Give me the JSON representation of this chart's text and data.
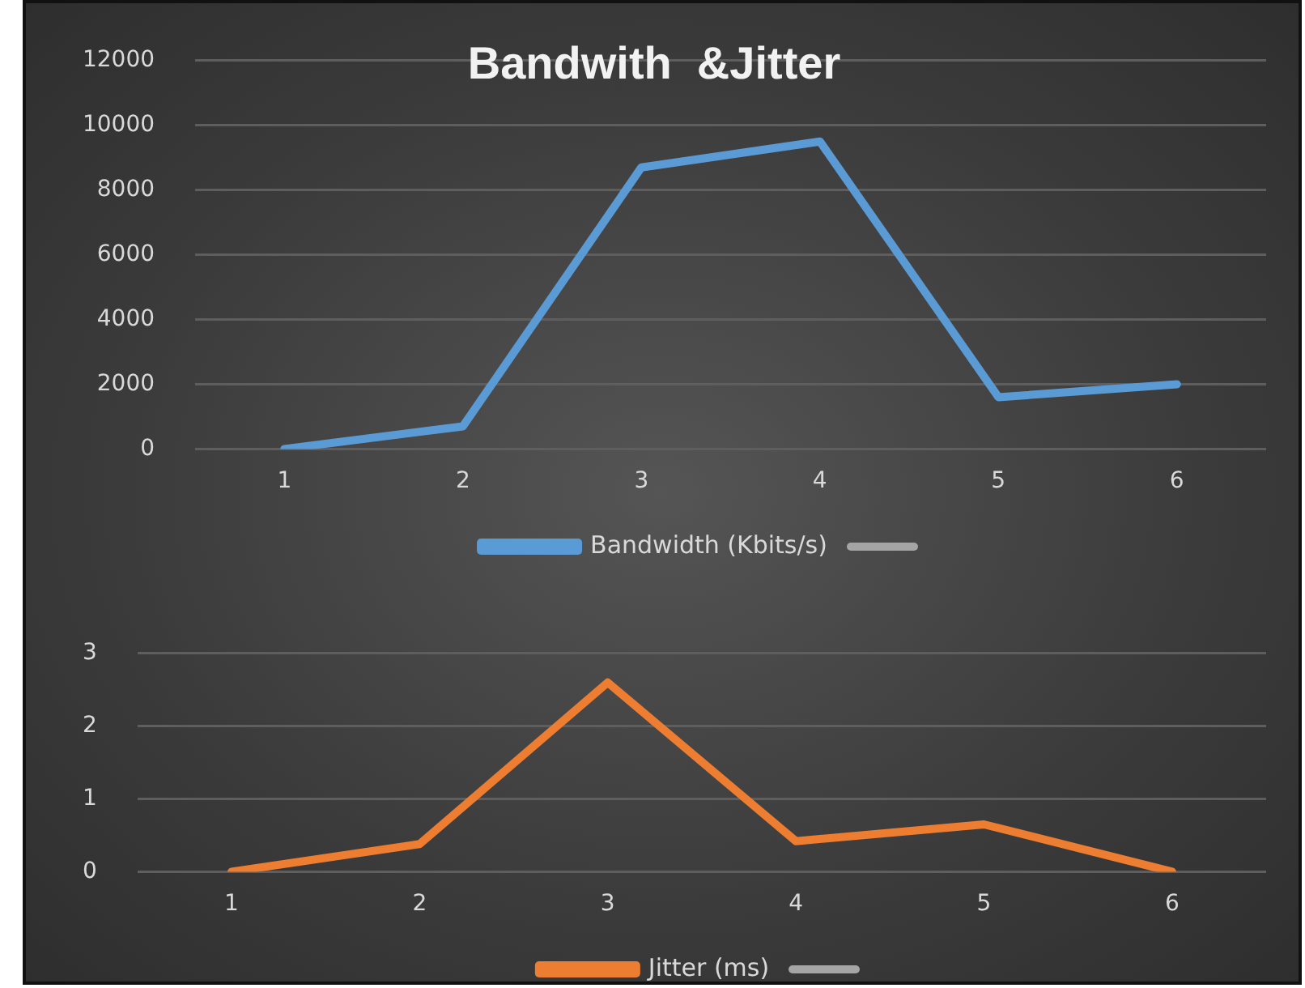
{
  "chart_data": [
    {
      "type": "line",
      "title": "Bandwith  &Jitter",
      "categories": [
        "1",
        "2",
        "3",
        "4",
        "5",
        "6"
      ],
      "series": [
        {
          "name": "Bandwidth (Kbits/s)",
          "color": "#5b9bd5",
          "values": [
            0,
            700,
            8700,
            9500,
            1600,
            2000
          ]
        }
      ],
      "ylim": [
        0,
        12000
      ],
      "yticks": [
        0,
        2000,
        4000,
        6000,
        8000,
        10000,
        12000
      ],
      "grid": "y",
      "legend": "bottom",
      "marker": "none",
      "line_style": "solid"
    },
    {
      "type": "line",
      "categories": [
        "1",
        "2",
        "3",
        "4",
        "5",
        "6"
      ],
      "series": [
        {
          "name": "Jitter (ms)",
          "color": "#ed7d31",
          "values": [
            0,
            0.38,
            2.6,
            0.42,
            0.65,
            0
          ]
        }
      ],
      "ylim": [
        0,
        3
      ],
      "yticks": [
        0,
        1,
        2,
        3
      ],
      "grid": "y",
      "legend": "bottom",
      "marker": "none",
      "line_style": "solid"
    }
  ]
}
